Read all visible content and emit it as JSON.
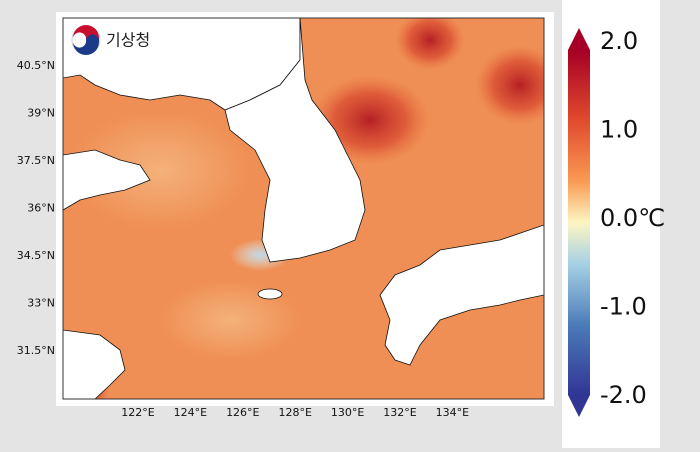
{
  "logo": {
    "text": "기상청"
  },
  "latitude_labels": [
    "40.5°N",
    "39°N",
    "37.5°N",
    "36°N",
    "34.5°N",
    "33°N",
    "31.5°N"
  ],
  "longitude_labels": [
    "122°E",
    "124°E",
    "126°E",
    "128°E",
    "130°E",
    "132°E",
    "134°E"
  ],
  "colorbar": {
    "labels": [
      "2.0",
      "1.0",
      "0.0℃",
      "-1.0",
      "-2.0"
    ]
  }
}
